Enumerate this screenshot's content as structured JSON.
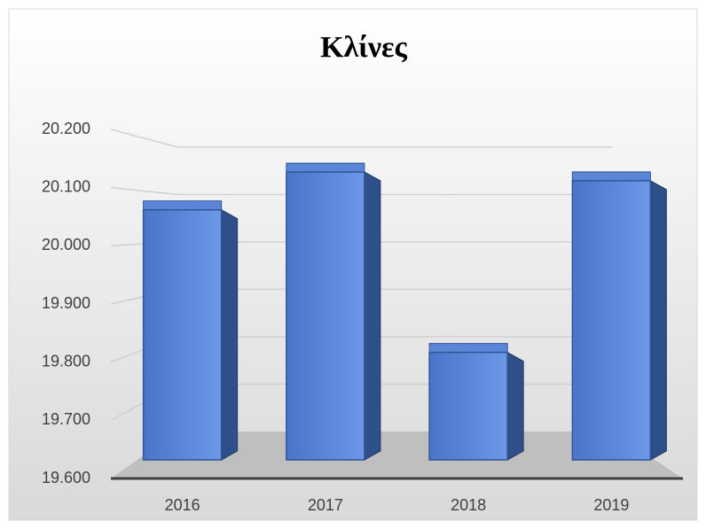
{
  "chart_data": {
    "type": "bar",
    "title": "Κλίνες",
    "categories": [
      "2016",
      "2017",
      "2018",
      "2019"
    ],
    "values": [
      20.045,
      20.11,
      19.8,
      20.095
    ],
    "color": "#4472c4",
    "ylim": [
      19.6,
      20.2
    ],
    "yticks": [
      {
        "value": 19.6,
        "label": "19.600"
      },
      {
        "value": 19.7,
        "label": "19.700"
      },
      {
        "value": 19.8,
        "label": "19.800"
      },
      {
        "value": 19.9,
        "label": "19.900"
      },
      {
        "value": 20.0,
        "label": "20.000"
      },
      {
        "value": 20.1,
        "label": "20.100"
      },
      {
        "value": 20.2,
        "label": "20.200"
      }
    ],
    "grid": true
  }
}
